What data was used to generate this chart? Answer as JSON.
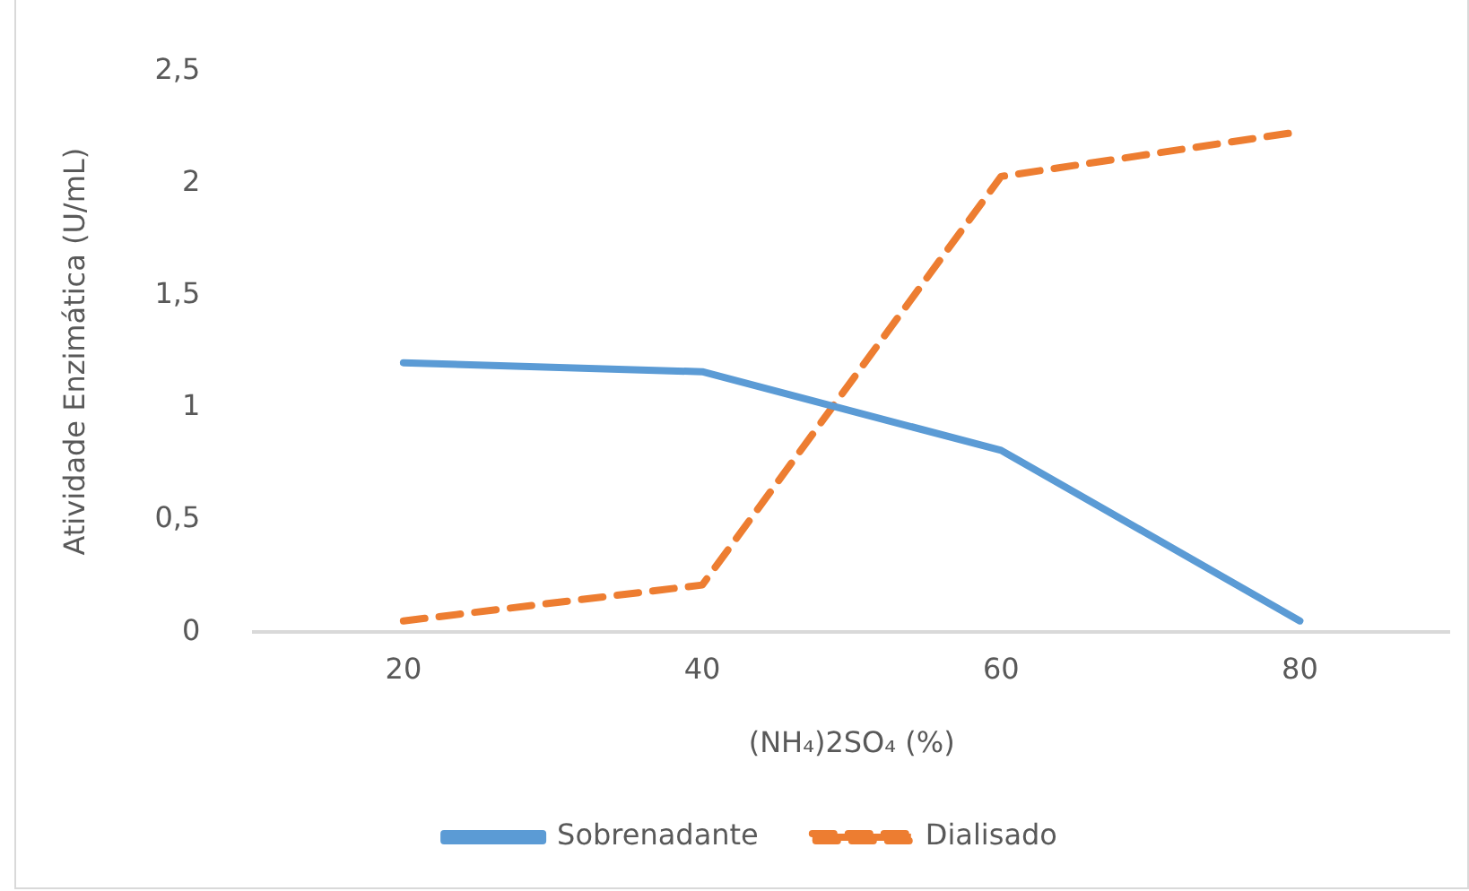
{
  "chart_data": {
    "type": "line",
    "xlabel": "(NH₄)2SO₄ (%)",
    "ylabel": "Atividade Enzimática (U/mL)",
    "categories": [
      "20",
      "40",
      "60",
      "80"
    ],
    "series": [
      {
        "name": "Sobrenadante",
        "color": "#5b9bd5",
        "line_style": "solid",
        "values": [
          1.2,
          1.16,
          0.81,
          0.05
        ]
      },
      {
        "name": "Dialisado",
        "color": "#ed7d31",
        "line_style": "dashed",
        "values": [
          0.05,
          0.21,
          2.03,
          2.23
        ]
      }
    ],
    "ylim": [
      0,
      2.5
    ],
    "yticks": [
      {
        "value": 0,
        "label": "0"
      },
      {
        "value": 0.5,
        "label": "0,5"
      },
      {
        "value": 1,
        "label": "1"
      },
      {
        "value": 1.5,
        "label": "1,5"
      },
      {
        "value": 2,
        "label": "2"
      },
      {
        "value": 2.5,
        "label": "2,5"
      }
    ],
    "grid": false,
    "legend": "bottom",
    "marker": "none"
  }
}
